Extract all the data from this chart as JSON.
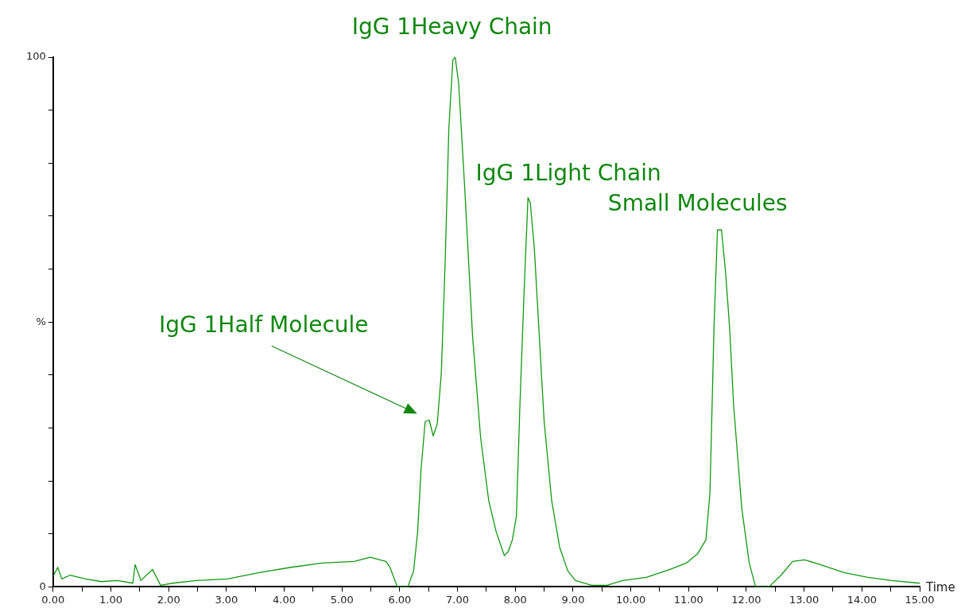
{
  "chart_data": {
    "type": "line",
    "xlabel": "Time",
    "marker": "none",
    "line_style": "solid",
    "grid": false,
    "legend": false,
    "xlim": [
      0,
      15
    ],
    "ylim": [
      0,
      100
    ],
    "xticks": [
      {
        "value": 0,
        "label": "0.00"
      },
      {
        "value": 0.5,
        "label": null
      },
      {
        "value": 1,
        "label": "1.00"
      },
      {
        "value": 1.5,
        "label": null
      },
      {
        "value": 2,
        "label": "2.00"
      },
      {
        "value": 2.5,
        "label": null
      },
      {
        "value": 3,
        "label": "3.00"
      },
      {
        "value": 3.5,
        "label": null
      },
      {
        "value": 4,
        "label": "4.00"
      },
      {
        "value": 4.5,
        "label": null
      },
      {
        "value": 5,
        "label": "5.00"
      },
      {
        "value": 5.5,
        "label": null
      },
      {
        "value": 6,
        "label": "6.00"
      },
      {
        "value": 6.5,
        "label": null
      },
      {
        "value": 7,
        "label": "7.00"
      },
      {
        "value": 7.5,
        "label": null
      },
      {
        "value": 8,
        "label": "8.00"
      },
      {
        "value": 8.5,
        "label": null
      },
      {
        "value": 9,
        "label": "9.00"
      },
      {
        "value": 9.5,
        "label": null
      },
      {
        "value": 10,
        "label": "10.00"
      },
      {
        "value": 10.5,
        "label": null
      },
      {
        "value": 11,
        "label": "11.00"
      },
      {
        "value": 11.5,
        "label": null
      },
      {
        "value": 12,
        "label": "12.00"
      },
      {
        "value": 12.5,
        "label": null
      },
      {
        "value": 13,
        "label": "13.00"
      },
      {
        "value": 13.5,
        "label": null
      },
      {
        "value": 14,
        "label": "14.00"
      },
      {
        "value": 14.5,
        "label": null
      },
      {
        "value": 15,
        "label": "15.00"
      }
    ],
    "yticks": [
      0,
      {
        "value": 10,
        "label": null
      },
      {
        "value": 20,
        "label": null
      },
      {
        "value": 30,
        "label": null
      },
      {
        "value": 40,
        "label": null
      },
      {
        "value": 50,
        "label": "%"
      },
      {
        "value": 60,
        "label": null
      },
      {
        "value": 70,
        "label": null
      },
      {
        "value": 80,
        "label": null
      },
      {
        "value": 90,
        "label": null
      },
      100
    ],
    "series": [
      {
        "color": "#119911",
        "x": [
          0.01,
          0.08,
          0.15,
          0.29,
          0.56,
          0.83,
          1.11,
          1.38,
          1.42,
          1.52,
          1.72,
          1.86,
          2.07,
          2.48,
          3.02,
          3.57,
          4.12,
          4.66,
          5.21,
          5.49,
          5.76,
          5.83,
          5.96,
          6.14,
          6.24,
          6.31,
          6.37,
          6.44,
          6.51,
          6.58,
          6.65,
          6.72,
          6.79,
          6.85,
          6.92,
          6.96,
          7.02,
          7.13,
          7.26,
          7.4,
          7.54,
          7.67,
          7.81,
          7.88,
          7.95,
          8.02,
          8.08,
          8.15,
          8.22,
          8.26,
          8.33,
          8.43,
          8.5,
          8.63,
          8.77,
          8.91,
          9.04,
          9.32,
          9.59,
          9.86,
          10.27,
          10.68,
          10.96,
          11.16,
          11.3,
          11.37,
          11.44,
          11.5,
          11.57,
          11.64,
          11.71,
          11.78,
          11.92,
          12.05,
          12.16,
          12.39,
          12.6,
          12.8,
          13.01,
          13.28,
          13.69,
          14.1,
          14.51,
          15
        ],
        "values": [
          2.2,
          3.7,
          1.5,
          2.2,
          1.5,
          1.0,
          1.2,
          0.7,
          4.2,
          1.2,
          3.3,
          0.3,
          0.7,
          1.2,
          1.5,
          2.7,
          3.7,
          4.5,
          4.8,
          5.6,
          4.8,
          3.7,
          0,
          0,
          3.0,
          10.4,
          22.3,
          31.2,
          31.5,
          28.5,
          30.8,
          40.4,
          62.7,
          86.5,
          99.5,
          100,
          95.1,
          74.3,
          47.5,
          28.2,
          16.3,
          10.4,
          5.9,
          6.7,
          8.9,
          13.4,
          34.2,
          55.0,
          73.5,
          72.5,
          63.9,
          44.6,
          31.2,
          16.3,
          7.4,
          3.0,
          1.2,
          0.3,
          0.3,
          1.2,
          1.8,
          3.3,
          4.5,
          6.3,
          8.9,
          17.8,
          49.0,
          67.4,
          67.4,
          59.4,
          49.0,
          34.2,
          14.9,
          4.5,
          0,
          0,
          2.2,
          4.8,
          5.1,
          4.2,
          2.7,
          1.8,
          1.2,
          0.7
        ]
      }
    ],
    "annotations": [
      {
        "text": "IgG 1Heavy Chain",
        "x": 6.96,
        "y": 100
      },
      {
        "text": "IgG 1Light Chain",
        "x": 8.26,
        "y": 72.5
      },
      {
        "text": "Small Molecules",
        "x": 11.57,
        "y": 67.4
      },
      "IgG 1Half Molecule"
    ]
  }
}
